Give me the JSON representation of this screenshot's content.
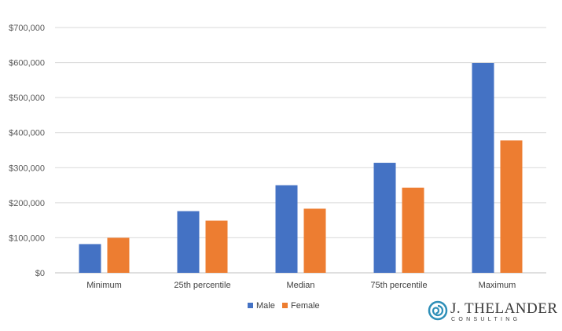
{
  "chart_data": {
    "type": "bar",
    "categories": [
      "Minimum",
      "25th percentile",
      "Median",
      "75th percentile",
      "Maximum"
    ],
    "series": [
      {
        "name": "Male",
        "color": "#4472C4",
        "values": [
          82000,
          176000,
          250000,
          314000,
          599000
        ]
      },
      {
        "name": "Female",
        "color": "#ED7D31",
        "values": [
          100000,
          149000,
          183000,
          243000,
          378000
        ]
      }
    ],
    "yticks": [
      "$0",
      "$100,000",
      "$200,000",
      "$300,000",
      "$400,000",
      "$500,000",
      "$600,000",
      "$700,000"
    ],
    "ylim": [
      0,
      700000
    ],
    "grid": true,
    "legend": "bottom-center"
  },
  "logo": {
    "name": "J. THELANDER",
    "tagline": "CONSULTING",
    "color": "#2E8FB8"
  }
}
